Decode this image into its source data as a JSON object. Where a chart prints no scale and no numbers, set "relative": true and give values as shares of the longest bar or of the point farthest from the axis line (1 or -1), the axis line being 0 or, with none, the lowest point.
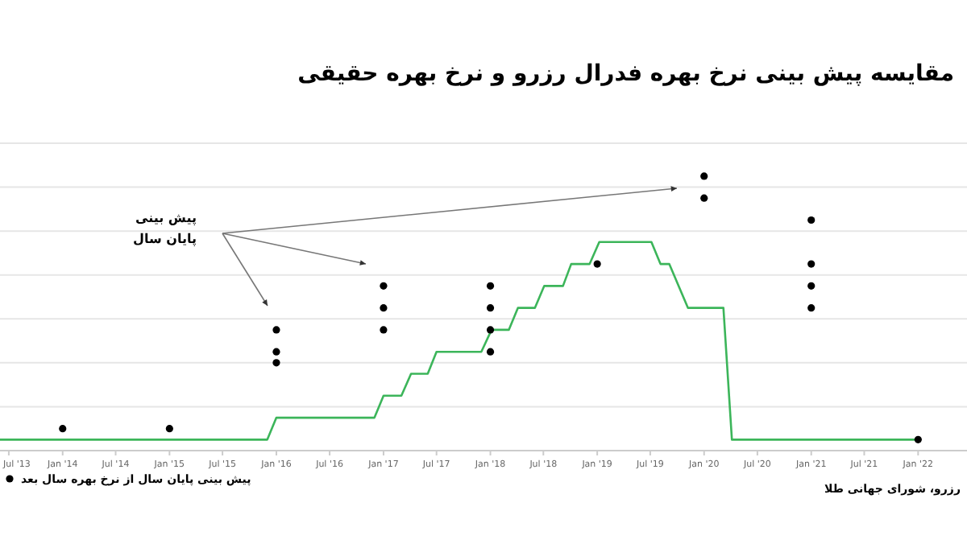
{
  "chart_data": {
    "type": "line",
    "relative": true,
    "title": "مقایسه پیش بینی نرخ بهره فدرال رزرو و نرخ بهره حقیقی",
    "annotations": [
      "پیش بینی\nپایان سال",
      "رزرو، شورای جهانی طلا"
    ],
    "xlim": [
      "2013-06-01",
      "2022-06-17"
    ],
    "xticks": [
      {
        "value": "2013-07-01",
        "label": "Jul '13"
      },
      {
        "value": "2014-01-01",
        "label": "Jan '14"
      },
      {
        "value": "2014-07-01",
        "label": "Jul '14"
      },
      {
        "value": "2015-01-01",
        "label": "Jan '15"
      },
      {
        "value": "2015-07-01",
        "label": "Jul '15"
      },
      {
        "value": "2016-01-01",
        "label": "Jan '16"
      },
      {
        "value": "2016-07-01",
        "label": "Jul '16"
      },
      {
        "value": "2017-01-01",
        "label": "Jan '17"
      },
      {
        "value": "2017-07-01",
        "label": "Jul '17"
      },
      {
        "value": "2018-01-01",
        "label": "Jan '18"
      },
      {
        "value": "2018-07-01",
        "label": "Jul '18"
      },
      {
        "value": "2019-01-01",
        "label": "Jan '19"
      },
      {
        "value": "2019-07-01",
        "label": "Jul '19"
      },
      {
        "value": "2020-01-01",
        "label": "Jan '20"
      },
      {
        "value": "2020-07-01",
        "label": "Jul '20"
      },
      {
        "value": "2021-01-01",
        "label": "Jan '21"
      },
      {
        "value": "2021-07-01",
        "label": "Jul '21"
      },
      {
        "value": "2022-01-01",
        "label": "Jan '22"
      }
    ],
    "grid": "y",
    "legend": "bottom left",
    "series": [
      {
        "color": "#3cb55a",
        "x": [
          "2013-06-01",
          "2015-12-01",
          "2016-01-01",
          "2016-12-01",
          "2017-01-01",
          "2017-03-03",
          "2017-04-05",
          "2017-06-01",
          "2017-07-01",
          "2017-12-01",
          "2018-01-05",
          "2018-03-05",
          "2018-04-05",
          "2018-06-02",
          "2018-07-04",
          "2018-09-06",
          "2018-10-04",
          "2018-12-06",
          "2019-01-08",
          "2019-07-05",
          "2019-08-05",
          "2019-09-04",
          "2019-11-07",
          "2020-03-07",
          "2020-04-05",
          "2022-01-07"
        ],
        "values": [
          0.04,
          0.04,
          0.12,
          0.12,
          0.2,
          0.2,
          0.28,
          0.28,
          0.36,
          0.36,
          0.44,
          0.44,
          0.52,
          0.52,
          0.6,
          0.6,
          0.68,
          0.68,
          0.76,
          0.76,
          0.68,
          0.68,
          0.52,
          0.52,
          0.04,
          0.04
        ]
      },
      {
        "type": "scatter",
        "name": "پیش بینی پایان سال از نرخ بهره سال بعد",
        "color": "#000000",
        "marker": "circle",
        "x": [
          "2014-01-01",
          "2015-01-01",
          "2016-01-01",
          "2016-01-01",
          "2016-01-01",
          "2017-01-01",
          "2017-01-01",
          "2017-01-01",
          "2018-01-01",
          "2018-01-01",
          "2018-01-01",
          "2018-01-01",
          "2019-01-01",
          "2020-01-01",
          "2020-01-01",
          "2021-01-01",
          "2021-01-01",
          "2021-01-01",
          "2021-01-01",
          "2022-01-01"
        ],
        "values": [
          0.08,
          0.08,
          0.44,
          0.36,
          0.32,
          0.6,
          0.52,
          0.44,
          0.6,
          0.52,
          0.44,
          0.36,
          0.68,
          1.0,
          0.92,
          0.84,
          0.68,
          0.6,
          0.52,
          0.04
        ]
      }
    ]
  }
}
